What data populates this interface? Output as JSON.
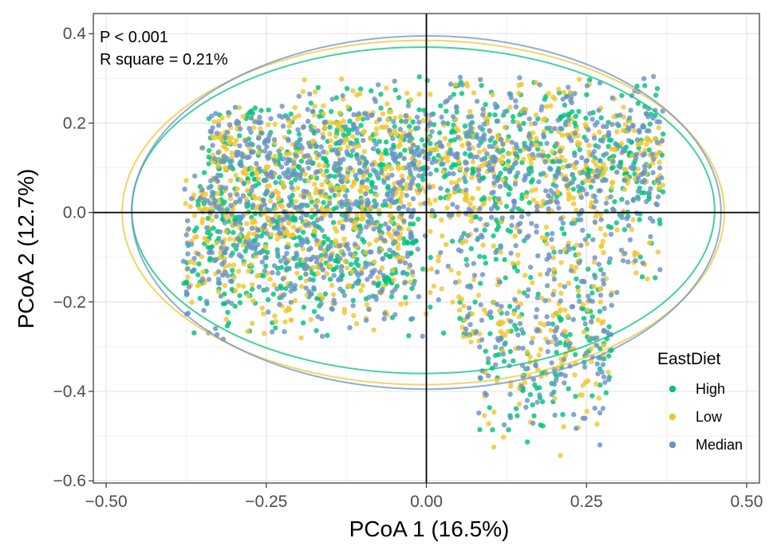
{
  "chart_data": {
    "type": "scatter",
    "xlabel": "PCoA 1 (16.5%)",
    "ylabel": "PCoA 2 (12.7%)",
    "xlim": [
      -0.52,
      0.52
    ],
    "ylim": [
      -0.605,
      0.445
    ],
    "x_ticks": [
      -0.5,
      -0.25,
      0.0,
      0.25,
      0.5
    ],
    "x_tick_labels": [
      "−0.50",
      "−0.25",
      "0.00",
      "0.25",
      "0.50"
    ],
    "y_ticks": [
      -0.6,
      -0.4,
      -0.2,
      0.0,
      0.2,
      0.4
    ],
    "y_tick_labels": [
      "−0.6",
      "−0.4",
      "−0.2",
      "0.0",
      "0.2",
      "0.4"
    ],
    "grid": true,
    "reference_lines": {
      "x": 0,
      "y": 0
    },
    "annotations": [
      "P < 0.001",
      "R square = 0.21%"
    ],
    "legend": {
      "title": "EastDiet",
      "position": "right",
      "entries": [
        "High",
        "Low",
        "Median"
      ]
    },
    "series": [
      {
        "name": "High",
        "color": "#00c27a",
        "ellipse": {
          "cx": -0.005,
          "cy": 0.005,
          "rx": 0.455,
          "ry": 0.365
        }
      },
      {
        "name": "Low",
        "color": "#f0c631",
        "ellipse": {
          "cx": -0.005,
          "cy": 0.0,
          "rx": 0.47,
          "ry": 0.385
        }
      },
      {
        "name": "Median",
        "color": "#6b93c7",
        "ellipse": {
          "cx": 0.0,
          "cy": 0.0,
          "rx": 0.46,
          "ry": 0.395
        }
      }
    ],
    "point_clouds": [
      {
        "comment_region": "upper band",
        "x_range": [
          -0.34,
          0.37
        ],
        "y_range": [
          -0.05,
          0.3
        ]
      },
      {
        "comment_region": "left lobe",
        "x_range": [
          -0.38,
          -0.05
        ],
        "y_range": [
          -0.35,
          0.05
        ]
      },
      {
        "comment_region": "lower right tail",
        "x_range": [
          0.05,
          0.3
        ],
        "y_range": [
          -0.55,
          -0.05
        ]
      }
    ]
  }
}
